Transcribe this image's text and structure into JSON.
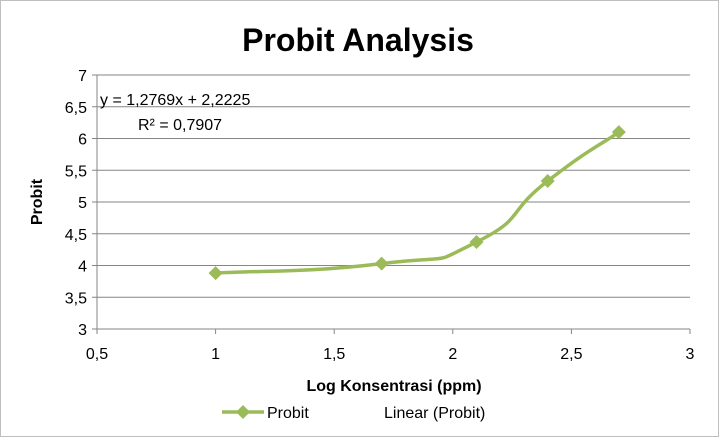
{
  "chart_data": {
    "type": "line",
    "title": "Probit Analysis",
    "xlabel": "Log Konsentrasi (ppm)",
    "ylabel": "Probit",
    "xlim": [
      0.5,
      3
    ],
    "ylim": [
      3,
      7
    ],
    "x_ticks": [
      "0,5",
      "1",
      "1,5",
      "2",
      "2,5",
      "3"
    ],
    "y_ticks": [
      "3",
      "3,5",
      "4",
      "4,5",
      "5",
      "5,5",
      "6",
      "6,5",
      "7"
    ],
    "grid": true,
    "legend_position": "bottom",
    "series": [
      {
        "name": "Probit",
        "color": "#9BBB59",
        "marker": "diamond",
        "smooth": true,
        "x": [
          1.0,
          1.7,
          2.1,
          2.4,
          2.7
        ],
        "y": [
          3.88,
          4.03,
          4.37,
          5.33,
          6.1
        ]
      }
    ],
    "trendline": {
      "name": "Linear (Probit)",
      "equation": "y = 1,2769x + 2,2225",
      "r_squared": "R² = 0,7907",
      "visible_on_plot": false
    }
  }
}
